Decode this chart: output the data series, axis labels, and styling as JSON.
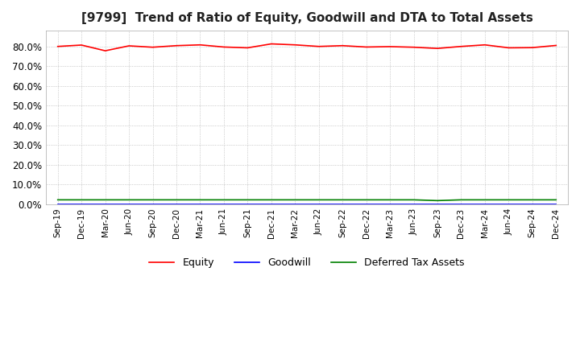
{
  "title": "[9799]  Trend of Ratio of Equity, Goodwill and DTA to Total Assets",
  "title_fontsize": 11,
  "ylim": [
    0.0,
    0.88
  ],
  "yticks": [
    0.0,
    0.1,
    0.2,
    0.3,
    0.4,
    0.5,
    0.6,
    0.7,
    0.8
  ],
  "legend_labels": [
    "Equity",
    "Goodwill",
    "Deferred Tax Assets"
  ],
  "legend_colors": [
    "#ff0000",
    "#0000ff",
    "#008000"
  ],
  "background_color": "#ffffff",
  "dates": [
    "Sep-19",
    "Dec-19",
    "Mar-20",
    "Jun-20",
    "Sep-20",
    "Dec-20",
    "Mar-21",
    "Jun-21",
    "Sep-21",
    "Dec-21",
    "Mar-22",
    "Jun-22",
    "Sep-22",
    "Dec-22",
    "Mar-23",
    "Jun-23",
    "Sep-23",
    "Dec-23",
    "Mar-24",
    "Jun-24",
    "Sep-24",
    "Dec-24"
  ],
  "equity": [
    0.8,
    0.807,
    0.778,
    0.803,
    0.796,
    0.804,
    0.808,
    0.797,
    0.793,
    0.813,
    0.808,
    0.8,
    0.804,
    0.797,
    0.799,
    0.796,
    0.79,
    0.8,
    0.808,
    0.793,
    0.794,
    0.805
  ],
  "goodwill": [
    0.0,
    0.0,
    0.0,
    0.0,
    0.0,
    0.0,
    0.0,
    0.0,
    0.0,
    0.0,
    0.0,
    0.0,
    0.0,
    0.0,
    0.0,
    0.0,
    0.0,
    0.0,
    0.0,
    0.0,
    0.0,
    0.0
  ],
  "dta": [
    0.022,
    0.022,
    0.022,
    0.022,
    0.022,
    0.022,
    0.022,
    0.022,
    0.022,
    0.022,
    0.022,
    0.022,
    0.022,
    0.022,
    0.022,
    0.022,
    0.018,
    0.022,
    0.022,
    0.022,
    0.022,
    0.022
  ]
}
